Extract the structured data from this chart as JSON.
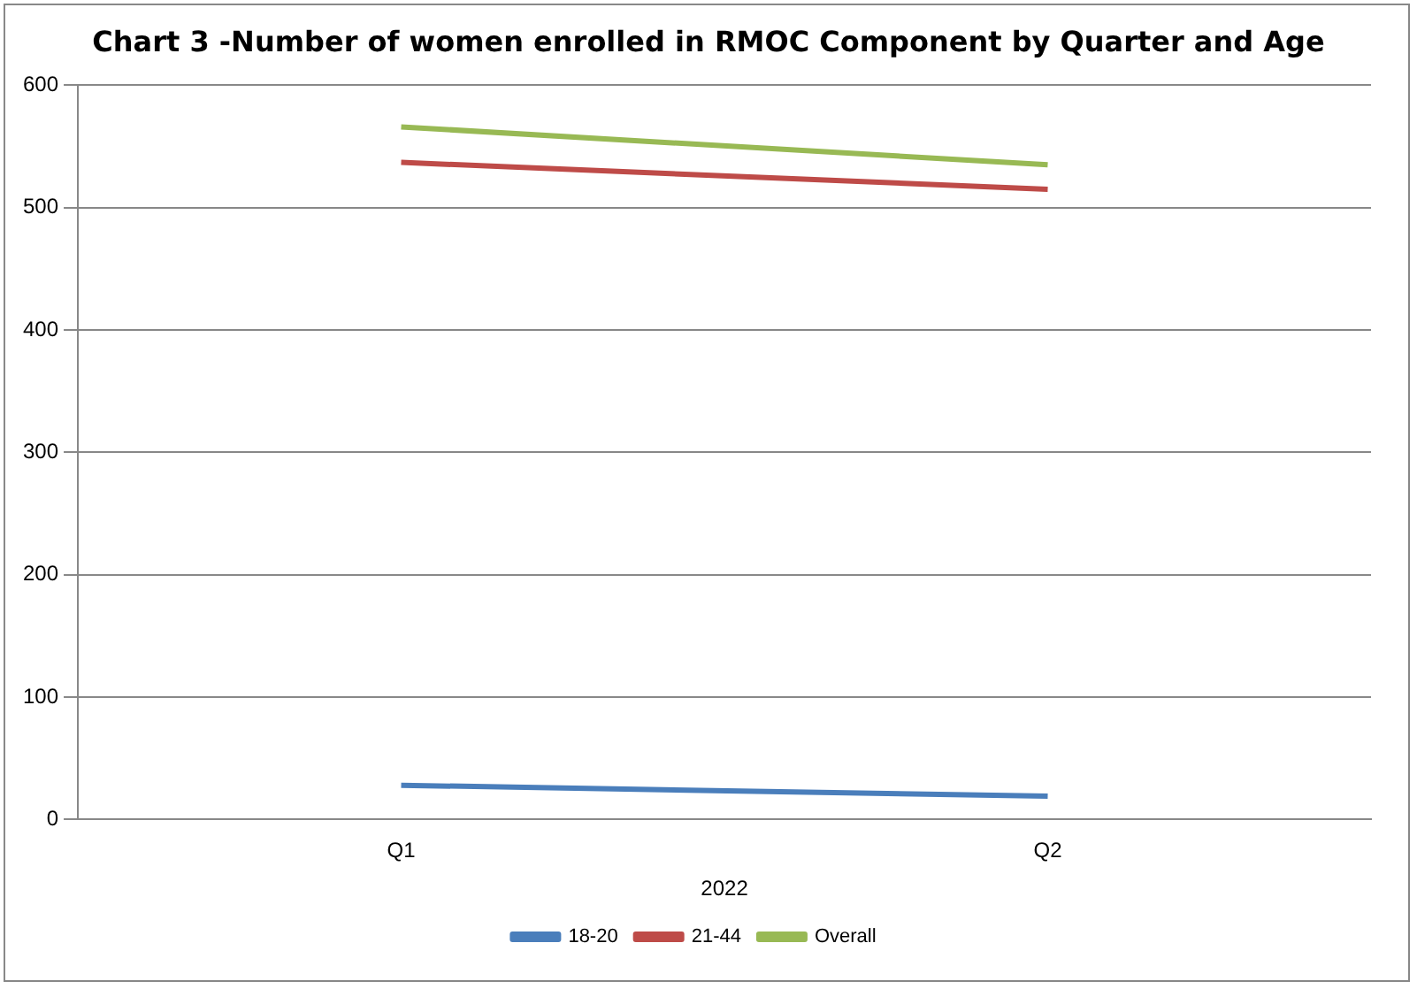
{
  "chart_data": {
    "type": "line",
    "title": "Chart 3 -Number of women enrolled in RMOC Component by Quarter and Age",
    "xlabel": "2022",
    "categories": [
      "Q1",
      "Q2"
    ],
    "series": [
      {
        "name": "18-20",
        "color": "#4a7ebb",
        "values": [
          28,
          19
        ]
      },
      {
        "name": "21-44",
        "color": "#be4b48",
        "values": [
          537,
          515
        ]
      },
      {
        "name": "Overall",
        "color": "#98b954",
        "values": [
          566,
          535
        ]
      }
    ],
    "ylim": [
      0,
      600
    ],
    "yticks": [
      0,
      100,
      200,
      300,
      400,
      500,
      600
    ],
    "grid": "y",
    "legend": "bottom",
    "marker": "none",
    "line_style": "solid"
  }
}
